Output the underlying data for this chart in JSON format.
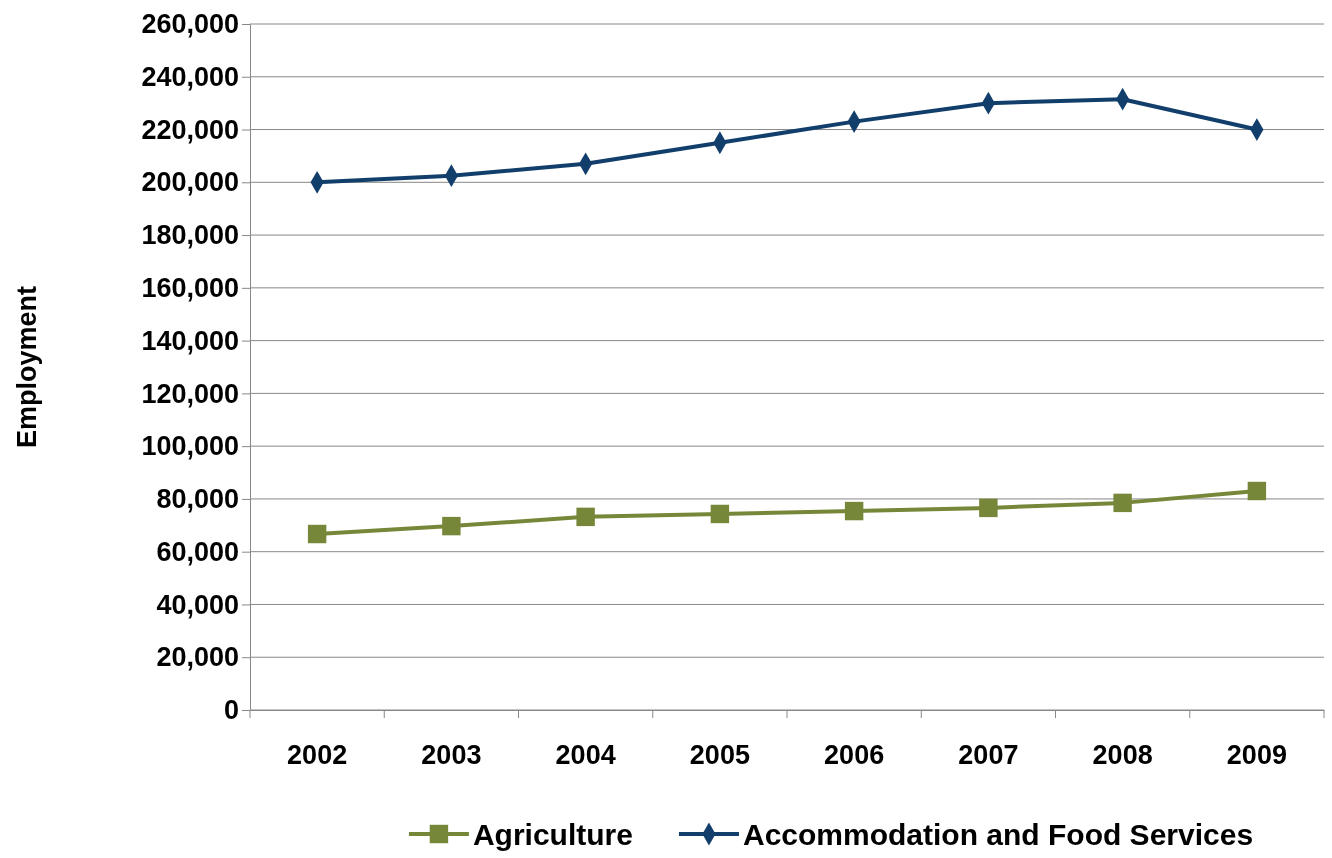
{
  "chart_data": {
    "type": "line",
    "ylabel": "Employment",
    "categories": [
      "2002",
      "2003",
      "2004",
      "2005",
      "2006",
      "2007",
      "2008",
      "2009"
    ],
    "series": [
      {
        "name": "Agriculture",
        "color": "#77873a",
        "marker": "square",
        "values": [
          66700,
          69700,
          73200,
          74300,
          75400,
          76600,
          78500,
          83000
        ]
      },
      {
        "name": "Accommodation and Food Services",
        "color": "#123e6c",
        "marker": "diamond",
        "values": [
          200000,
          202500,
          207000,
          215000,
          223000,
          230000,
          231500,
          220000
        ]
      }
    ],
    "ylim": [
      0,
      260000
    ],
    "yticks": [
      {
        "value": 0,
        "label": "0"
      },
      {
        "value": 20000,
        "label": "20,000"
      },
      {
        "value": 40000,
        "label": "40,000"
      },
      {
        "value": 60000,
        "label": "60,000"
      },
      {
        "value": 80000,
        "label": "80,000"
      },
      {
        "value": 100000,
        "label": "100,000"
      },
      {
        "value": 120000,
        "label": "120,000"
      },
      {
        "value": 140000,
        "label": "140,000"
      },
      {
        "value": 160000,
        "label": "160,000"
      },
      {
        "value": 180000,
        "label": "180,000"
      },
      {
        "value": 200000,
        "label": "200,000"
      },
      {
        "value": 220000,
        "label": "220,000"
      },
      {
        "value": 240000,
        "label": "240,000"
      },
      {
        "value": 260000,
        "label": "260,000"
      }
    ],
    "grid": "y",
    "legend": "bottom"
  }
}
